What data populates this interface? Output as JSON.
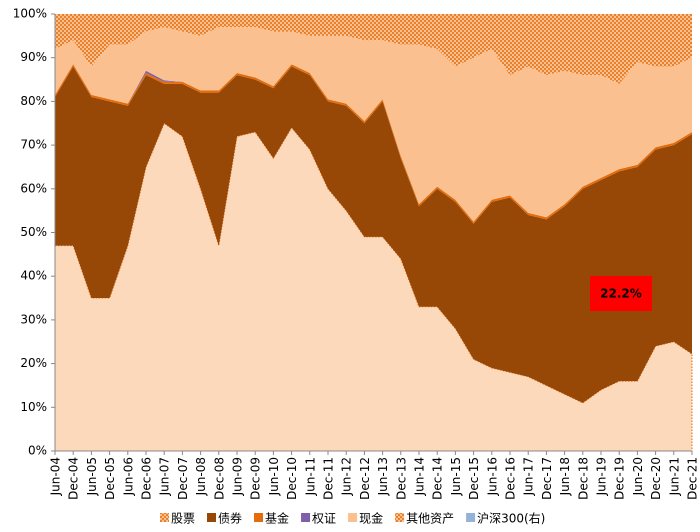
{
  "chart_data": {
    "type": "stacked_area",
    "categories": [
      "Jun-04",
      "Dec-04",
      "Jun-05",
      "Dec-05",
      "Jun-06",
      "Dec-06",
      "Jun-07",
      "Dec-07",
      "Jun-08",
      "Dec-08",
      "Jun-09",
      "Dec-09",
      "Jun-10",
      "Dec-10",
      "Jun-11",
      "Dec-11",
      "Jun-12",
      "Dec-12",
      "Jun-13",
      "Dec-13",
      "Jun-14",
      "Dec-14",
      "Jun-15",
      "Dec-15",
      "Jun-16",
      "Dec-16",
      "Jun-17",
      "Dec-17",
      "Jun-18",
      "Dec-18",
      "Jun-19",
      "Dec-19",
      "Jun-20",
      "Dec-20",
      "Jun-21",
      "Dec-21"
    ],
    "series": [
      {
        "name": "股票",
        "color": "#fcd9bb",
        "values": [
          47,
          47,
          35,
          35,
          47,
          65,
          75,
          72,
          60,
          47,
          72,
          73,
          67,
          74,
          69,
          60,
          55,
          49,
          49,
          44,
          33,
          33,
          28,
          21,
          19,
          18,
          17,
          15,
          13,
          11,
          14,
          16,
          16,
          24,
          25,
          22.2
        ]
      },
      {
        "name": "债券",
        "color": "#974806",
        "values": [
          34,
          41,
          46,
          45,
          32,
          21,
          9,
          12,
          22,
          35,
          14,
          12,
          16,
          14,
          17,
          20,
          24,
          26,
          31,
          23,
          23,
          27,
          29,
          31,
          38,
          40,
          37,
          38,
          43,
          49,
          48,
          48,
          49,
          45,
          45,
          50.3
        ]
      },
      {
        "name": "基金",
        "color": "#e46c0a",
        "values": [
          0.5,
          0.5,
          0.5,
          0.5,
          0.5,
          0.5,
          0.5,
          0.5,
          0.5,
          0.5,
          0.5,
          0.5,
          0.5,
          0.5,
          0.5,
          0.5,
          0.5,
          0.5,
          0.5,
          0.5,
          0.5,
          0.5,
          0.5,
          0.5,
          0.5,
          0.5,
          0.5,
          0.5,
          0.5,
          0.5,
          0.5,
          0.5,
          0.5,
          0.5,
          0.5,
          0.5
        ]
      },
      {
        "name": "权证",
        "color": "#7f5fa8",
        "values": [
          0,
          0,
          0,
          0,
          0,
          0.5,
          0.3,
          0,
          0,
          0,
          0,
          0,
          0,
          0,
          0,
          0,
          0,
          0,
          0,
          0,
          0,
          0,
          0,
          0,
          0,
          0,
          0,
          0,
          0,
          0,
          0,
          0,
          0,
          0,
          0,
          0
        ]
      },
      {
        "name": "现金",
        "color": "#fac090",
        "values": [
          10.5,
          5.5,
          6.5,
          12.5,
          13.5,
          9,
          12.2,
          11.5,
          12.5,
          14.5,
          10.5,
          11.5,
          12.5,
          7.5,
          8.5,
          14.5,
          15.5,
          18.5,
          13.5,
          25.5,
          36.5,
          31.5,
          30.5,
          37.5,
          34.5,
          27.5,
          33.5,
          32.5,
          30.5,
          25.5,
          23.5,
          19.5,
          23.5,
          18.5,
          17.5,
          17
        ]
      },
      {
        "name": "其他资产",
        "color": "#e87b2c",
        "pattern": true,
        "values": [
          8,
          6,
          12,
          7,
          7,
          4,
          3,
          4,
          5,
          3,
          3,
          3,
          4,
          4,
          5,
          5,
          5,
          6,
          6,
          7,
          7,
          8,
          12,
          10,
          8,
          14,
          12,
          14,
          13,
          14,
          14,
          16,
          11,
          12,
          12,
          10
        ]
      },
      {
        "name": "沪深300(右)",
        "color": "#95b3d7",
        "axis": "y2",
        "values": [
          null,
          null,
          null,
          null,
          null,
          null,
          null,
          null,
          null,
          null,
          null,
          null,
          null,
          null,
          null,
          null,
          null,
          null,
          null,
          null,
          null,
          null,
          null,
          null,
          null,
          null,
          null,
          null,
          null,
          null,
          null,
          null,
          null,
          null,
          null,
          null
        ]
      }
    ],
    "ylim": [
      0,
      100
    ],
    "yticks": [
      {
        "value": 0,
        "label": "0%"
      },
      {
        "value": 10,
        "label": "10%"
      },
      {
        "value": 20,
        "label": "20%"
      },
      {
        "value": 30,
        "label": "30%"
      },
      {
        "value": 40,
        "label": "40%"
      },
      {
        "value": 50,
        "label": "50%"
      },
      {
        "value": 60,
        "label": "60%"
      },
      {
        "value": 70,
        "label": "70%"
      },
      {
        "value": 80,
        "label": "80%"
      },
      {
        "value": 90,
        "label": "90%"
      },
      {
        "value": 100,
        "label": "100%"
      }
    ],
    "annotations": [
      {
        "text": "22.2%",
        "color": "#ff0000"
      }
    ]
  }
}
